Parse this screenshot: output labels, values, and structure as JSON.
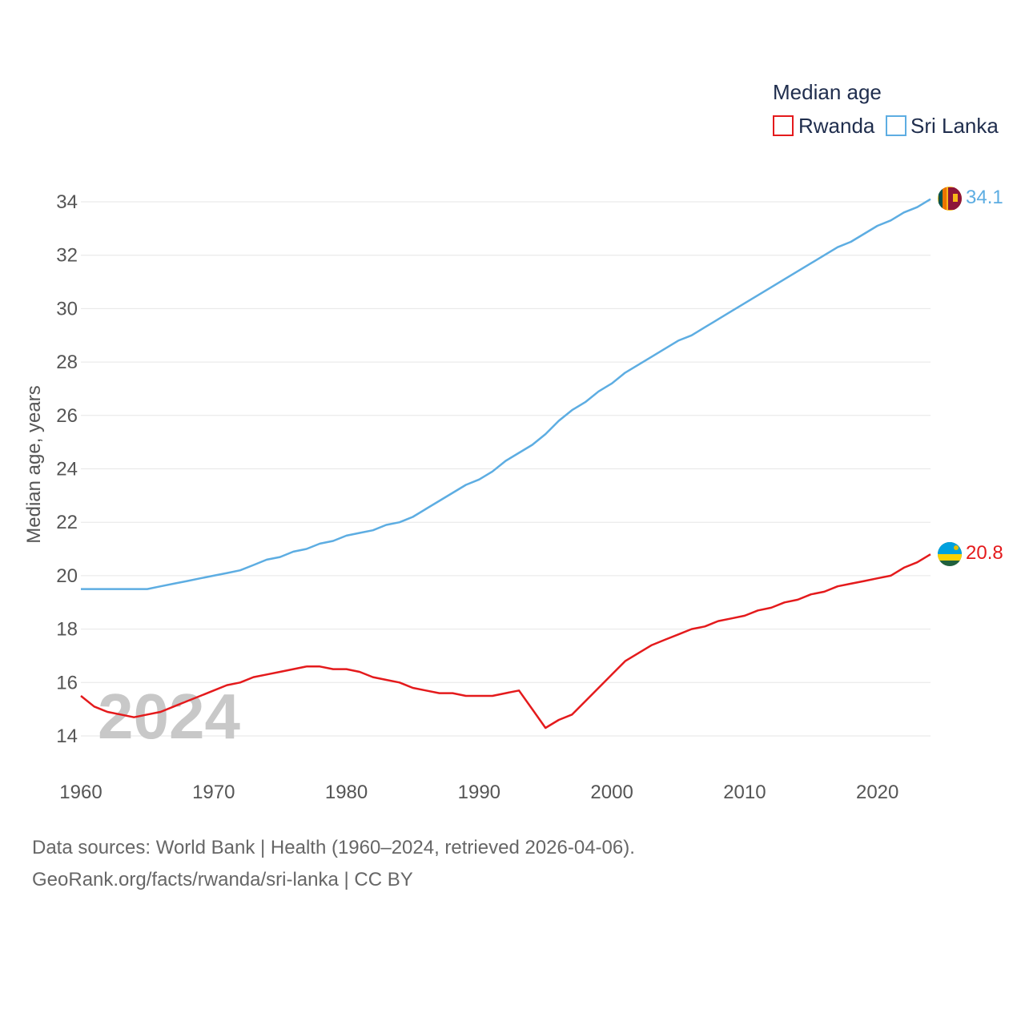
{
  "chart_data": {
    "type": "line",
    "legend_title": "Median age",
    "ylabel": "Median age, years",
    "xlabel": "",
    "xlim": [
      1960,
      2024
    ],
    "ylim": [
      13,
      35
    ],
    "yticks": [
      14,
      16,
      18,
      20,
      22,
      24,
      26,
      28,
      30,
      32,
      34
    ],
    "xticks": [
      1960,
      1970,
      1980,
      1990,
      2000,
      2010,
      2020
    ],
    "year_label": "2024",
    "x": [
      1960,
      1961,
      1962,
      1963,
      1964,
      1965,
      1966,
      1967,
      1968,
      1969,
      1970,
      1971,
      1972,
      1973,
      1974,
      1975,
      1976,
      1977,
      1978,
      1979,
      1980,
      1981,
      1982,
      1983,
      1984,
      1985,
      1986,
      1987,
      1988,
      1989,
      1990,
      1991,
      1992,
      1993,
      1994,
      1995,
      1996,
      1997,
      1998,
      1999,
      2000,
      2001,
      2002,
      2003,
      2004,
      2005,
      2006,
      2007,
      2008,
      2009,
      2010,
      2011,
      2012,
      2013,
      2014,
      2015,
      2016,
      2017,
      2018,
      2019,
      2020,
      2021,
      2022,
      2023,
      2024
    ],
    "series": [
      {
        "name": "Rwanda",
        "color": "#e41a1c",
        "end_value_label": "20.8",
        "values": [
          15.5,
          15.1,
          14.9,
          14.8,
          14.7,
          14.8,
          14.9,
          15.1,
          15.3,
          15.5,
          15.7,
          15.9,
          16.0,
          16.2,
          16.3,
          16.4,
          16.5,
          16.6,
          16.6,
          16.5,
          16.5,
          16.4,
          16.2,
          16.1,
          16.0,
          15.8,
          15.7,
          15.6,
          15.6,
          15.5,
          15.5,
          15.5,
          15.6,
          15.7,
          15.0,
          14.3,
          14.6,
          14.8,
          15.3,
          15.8,
          16.3,
          16.8,
          17.1,
          17.4,
          17.6,
          17.8,
          18.0,
          18.1,
          18.3,
          18.4,
          18.5,
          18.7,
          18.8,
          19.0,
          19.1,
          19.3,
          19.4,
          19.6,
          19.7,
          19.8,
          19.9,
          20.0,
          20.3,
          20.5,
          20.8
        ]
      },
      {
        "name": "Sri Lanka",
        "color": "#5dade2",
        "end_value_label": "34.1",
        "values": [
          19.5,
          19.5,
          19.5,
          19.5,
          19.5,
          19.5,
          19.6,
          19.7,
          19.8,
          19.9,
          20.0,
          20.1,
          20.2,
          20.4,
          20.6,
          20.7,
          20.9,
          21.0,
          21.2,
          21.3,
          21.5,
          21.6,
          21.7,
          21.9,
          22.0,
          22.2,
          22.5,
          22.8,
          23.1,
          23.4,
          23.6,
          23.9,
          24.3,
          24.6,
          24.9,
          25.3,
          25.8,
          26.2,
          26.5,
          26.9,
          27.2,
          27.6,
          27.9,
          28.2,
          28.5,
          28.8,
          29.0,
          29.3,
          29.6,
          29.9,
          30.2,
          30.5,
          30.8,
          31.1,
          31.4,
          31.7,
          32.0,
          32.3,
          32.5,
          32.8,
          33.1,
          33.3,
          33.6,
          33.8,
          34.1
        ]
      }
    ]
  },
  "footer": {
    "line1": "Data sources: World Bank | Health (1960–2024, retrieved 2026-04-06).",
    "line2": "GeoRank.org/facts/rwanda/sri-lanka | CC BY"
  },
  "flags": {
    "rwanda": "rwanda-flag-icon",
    "sri_lanka": "sri-lanka-flag-icon"
  }
}
